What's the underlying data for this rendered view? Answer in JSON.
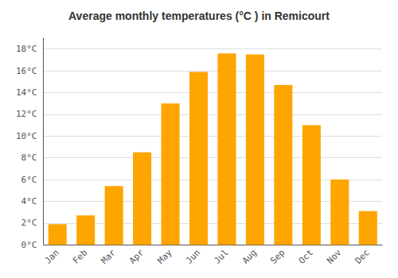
{
  "chart_data": {
    "type": "bar",
    "title": "Average monthly temperatures (°C ) in Remicourt",
    "categories": [
      "Jan",
      "Feb",
      "Mar",
      "Apr",
      "May",
      "Jun",
      "Jul",
      "Aug",
      "Sep",
      "Oct",
      "Nov",
      "Dec"
    ],
    "values": [
      1.9,
      2.7,
      5.4,
      8.5,
      13.0,
      15.9,
      17.6,
      17.5,
      14.7,
      11.0,
      6.0,
      3.1
    ],
    "color": "#FFA500",
    "ylim": [
      0,
      19
    ],
    "yticks": [
      {
        "value": 0,
        "label": "0°C"
      },
      {
        "value": 2,
        "label": "2°C"
      },
      {
        "value": 4,
        "label": "4°C"
      },
      {
        "value": 6,
        "label": "6°C"
      },
      {
        "value": 8,
        "label": "8°C"
      },
      {
        "value": 10,
        "label": "10°C"
      },
      {
        "value": 12,
        "label": "12°C"
      },
      {
        "value": 14,
        "label": "14°C"
      },
      {
        "value": 16,
        "label": "16°C"
      },
      {
        "value": 18,
        "label": "18°C"
      }
    ],
    "grid": true
  }
}
